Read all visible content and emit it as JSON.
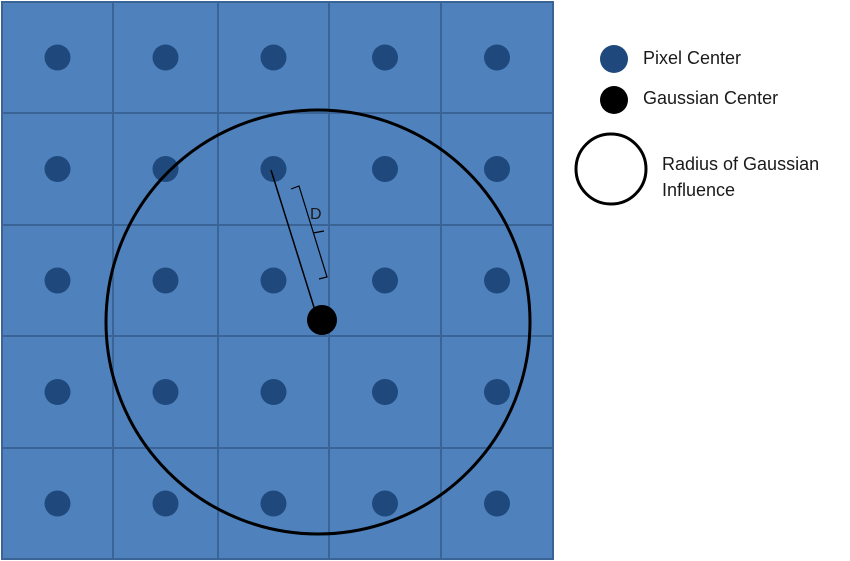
{
  "diagram": {
    "grid": {
      "rows": 5,
      "cols": 5
    },
    "distance_label": "D"
  },
  "legend": {
    "pixel_center": {
      "label": "Pixel Center",
      "icon": "pixel-center-dot-icon"
    },
    "gaussian_center": {
      "label": "Gaussian Center",
      "icon": "gaussian-center-dot-icon"
    },
    "radius": {
      "label_line1": "Radius of Gaussian",
      "label_line2": "Influence",
      "icon": "influence-circle-icon"
    }
  },
  "colors": {
    "cell_fill": "#4f81bd",
    "grid_line": "#3a6496",
    "pixel_center": "#1f497d",
    "gaussian_center": "#000000",
    "influence_circle": "#000000"
  }
}
